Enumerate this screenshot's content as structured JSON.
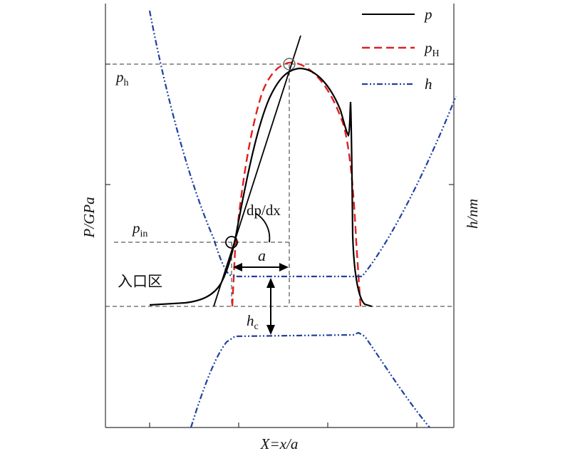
{
  "figure": {
    "x_axis_label": "X=x/a",
    "y_axis_left_label": "P/GPa",
    "y_axis_right_label": "h/nm",
    "annotations": {
      "ph": {
        "main": "p",
        "sub": "h"
      },
      "pin": {
        "main": "p",
        "sub": "in"
      },
      "slope": "dp/dx",
      "half_width": "a",
      "hc": {
        "main": "h",
        "sub": "c"
      },
      "inlet_zone": "入口区"
    },
    "legend": [
      {
        "main": "p",
        "sub": "",
        "color": "#000000",
        "style": "solid"
      },
      {
        "main": "p",
        "sub": "H",
        "color": "#e02020",
        "style": "dashed"
      },
      {
        "main": "h",
        "sub": "",
        "color": "#2040a0",
        "style": "dash-dot-dot"
      }
    ]
  }
}
